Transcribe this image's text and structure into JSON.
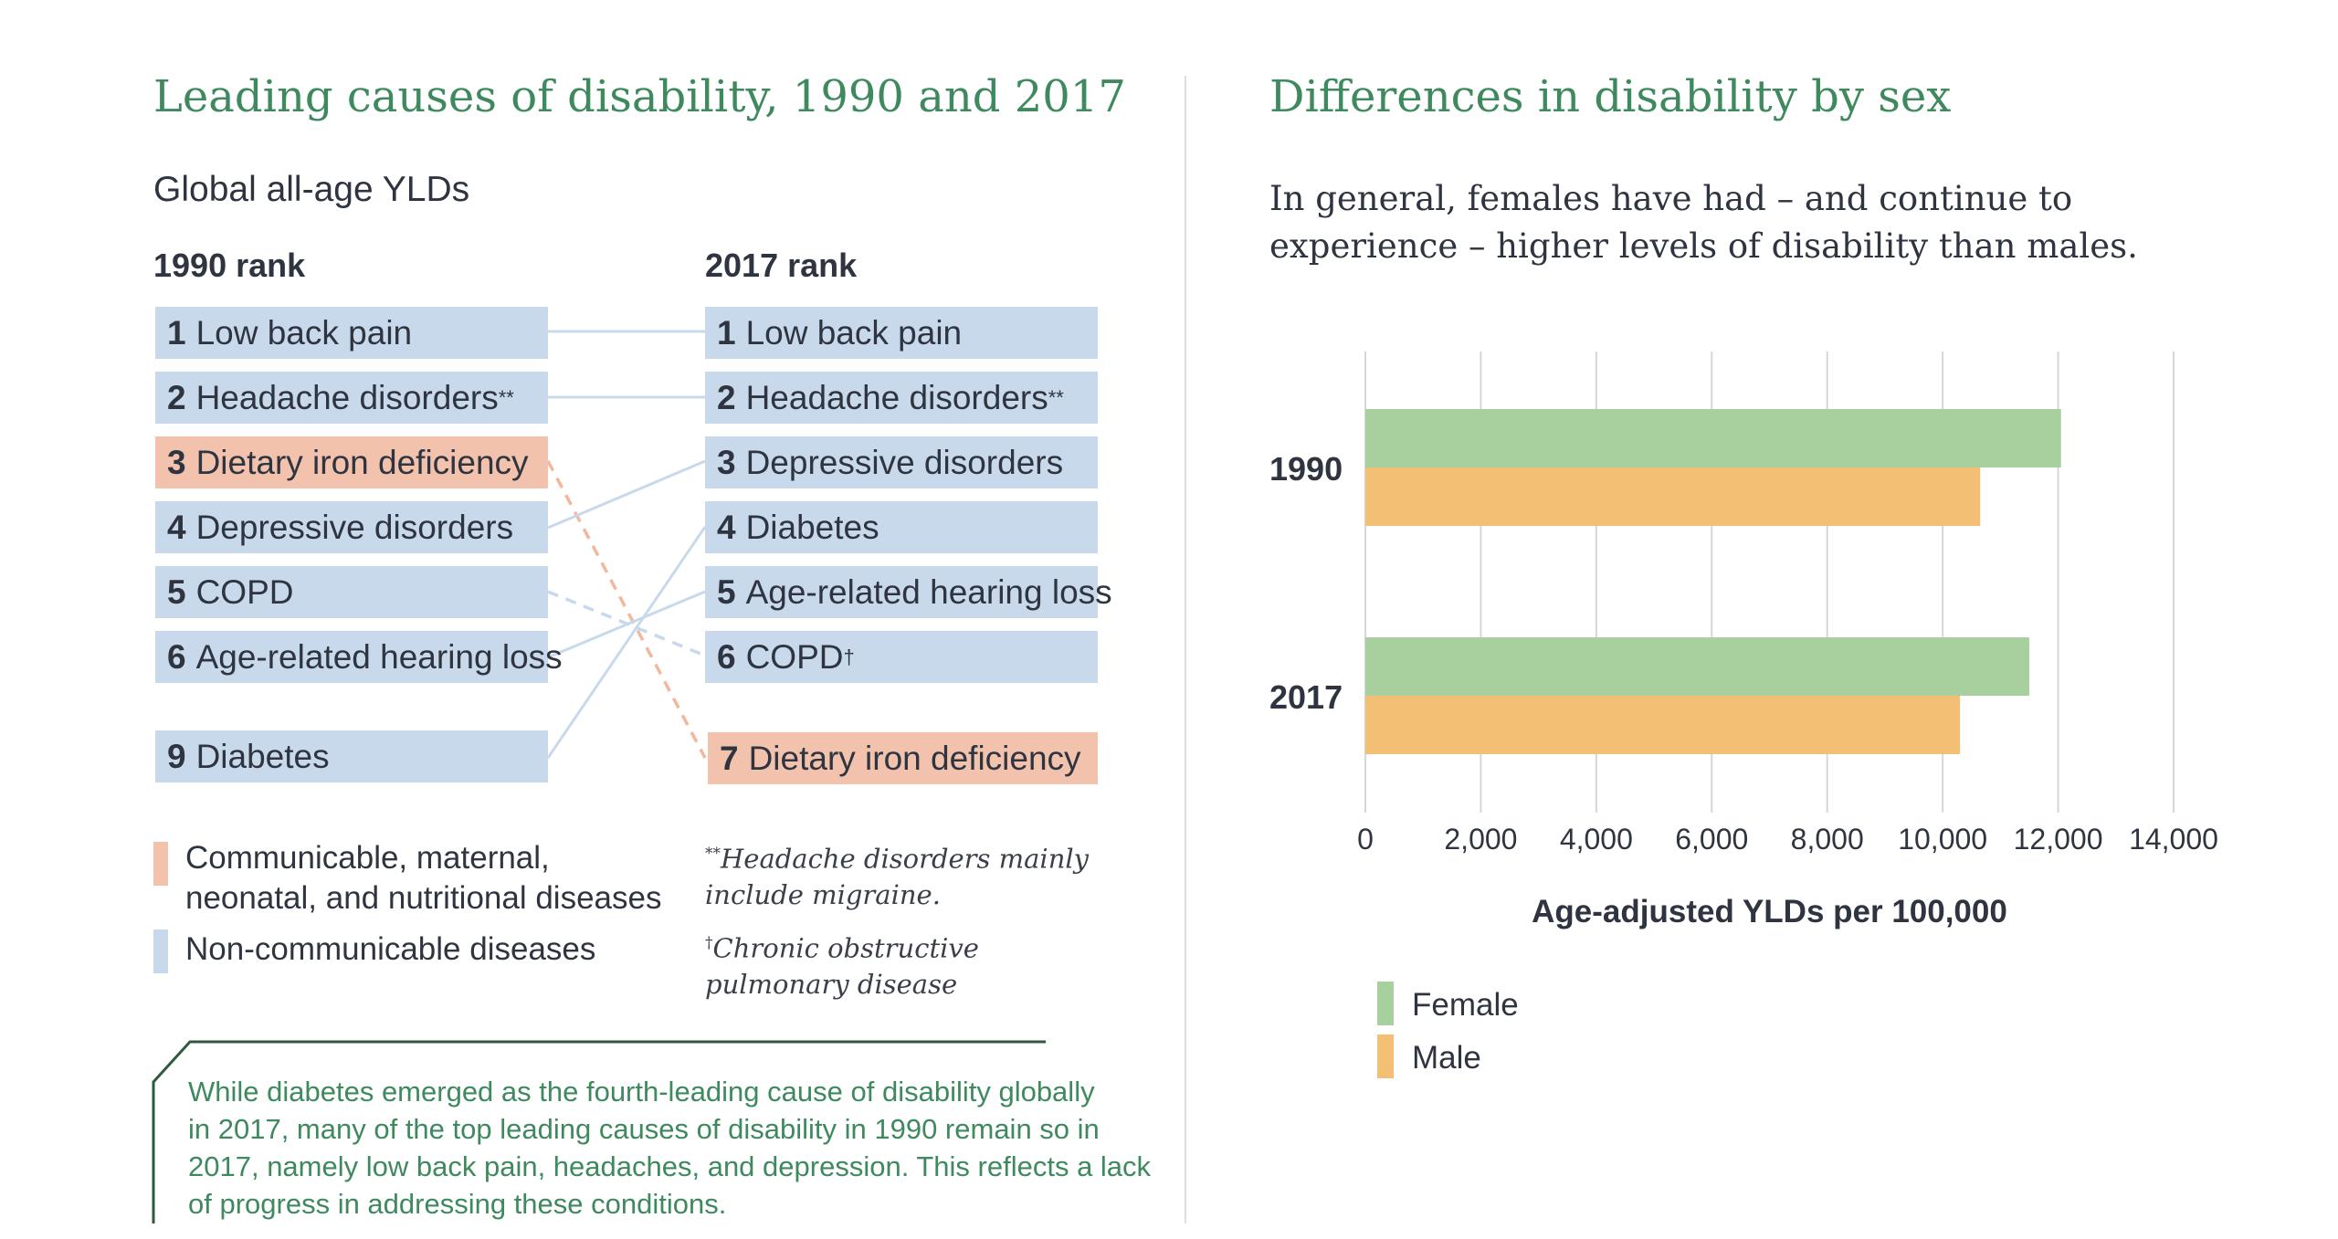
{
  "left": {
    "title": "Leading causes of disability, 1990 and 2017",
    "subtitle": "Global all-age YLDs",
    "col1_header": "1990 rank",
    "col2_header": "2017 rank",
    "rank_1990": [
      {
        "rank": "1",
        "label": "Low back pain",
        "mark": "",
        "type": "ncd"
      },
      {
        "rank": "2",
        "label": "Headache disorders",
        "mark": "**",
        "type": "ncd"
      },
      {
        "rank": "3",
        "label": "Dietary iron deficiency",
        "mark": "",
        "type": "cmn"
      },
      {
        "rank": "4",
        "label": "Depressive disorders",
        "mark": "",
        "type": "ncd"
      },
      {
        "rank": "5",
        "label": "COPD",
        "mark": "",
        "type": "ncd"
      },
      {
        "rank": "6",
        "label": "Age-related hearing loss",
        "mark": "",
        "type": "ncd"
      },
      {
        "rank": "9",
        "label": "Diabetes",
        "mark": "",
        "type": "ncd"
      }
    ],
    "rank_2017": [
      {
        "rank": "1",
        "label": "Low back pain",
        "mark": "",
        "type": "ncd"
      },
      {
        "rank": "2",
        "label": "Headache disorders",
        "mark": "**",
        "type": "ncd"
      },
      {
        "rank": "3",
        "label": "Depressive disorders",
        "mark": "",
        "type": "ncd"
      },
      {
        "rank": "4",
        "label": "Diabetes",
        "mark": "",
        "type": "ncd"
      },
      {
        "rank": "5",
        "label": "Age-related hearing loss",
        "mark": "",
        "type": "ncd"
      },
      {
        "rank": "6",
        "label": "COPD",
        "mark": "†",
        "type": "ncd"
      },
      {
        "rank": "7",
        "label": "Dietary iron deficiency",
        "mark": "",
        "type": "cmn"
      }
    ],
    "legend": {
      "communicable_line1": "Communicable, maternal,",
      "communicable_line2": "neonatal, and nutritional diseases",
      "noncommunicable": "Non-communicable diseases",
      "communicable_color": "#f2c2ad",
      "noncommunicable_color": "#c9d9ec"
    },
    "notes": {
      "note1_mark": "**",
      "note1_line1": "Headache disorders mainly",
      "note1_line2": "include migraine.",
      "note2_mark": "†",
      "note2_line1": "Chronic obstructive",
      "note2_line2": "pulmonary disease"
    },
    "callout": {
      "line1": "While diabetes emerged as the fourth-leading cause of disability globally",
      "line2": "in 2017, many of the top leading causes of disability in 1990 remain so in",
      "line3": "2017, namely low back pain, headaches, and depression. This reflects a lack",
      "line4": "of progress in addressing these conditions."
    }
  },
  "right": {
    "title": "Differences in disability by sex",
    "text_line1": "In general, females have had – and continue to",
    "text_line2": "experience – higher levels of disability than males."
  },
  "chart_data": {
    "type": "bar",
    "orientation": "horizontal",
    "categories": [
      "1990",
      "2017"
    ],
    "series": [
      {
        "name": "Female",
        "color": "#a8cf9e",
        "values": [
          12050,
          11500
        ]
      },
      {
        "name": "Male",
        "color": "#f3bf74",
        "values": [
          10650,
          10300
        ]
      }
    ],
    "xlabel": "Age-adjusted YLDs per 100,000",
    "ylabel": "",
    "xlim": [
      0,
      14000
    ],
    "ticks": [
      "0",
      "2,000",
      "4,000",
      "6,000",
      "8,000",
      "10,000",
      "12,000",
      "14,000"
    ],
    "grid": true,
    "legend_position": "bottom-left"
  }
}
